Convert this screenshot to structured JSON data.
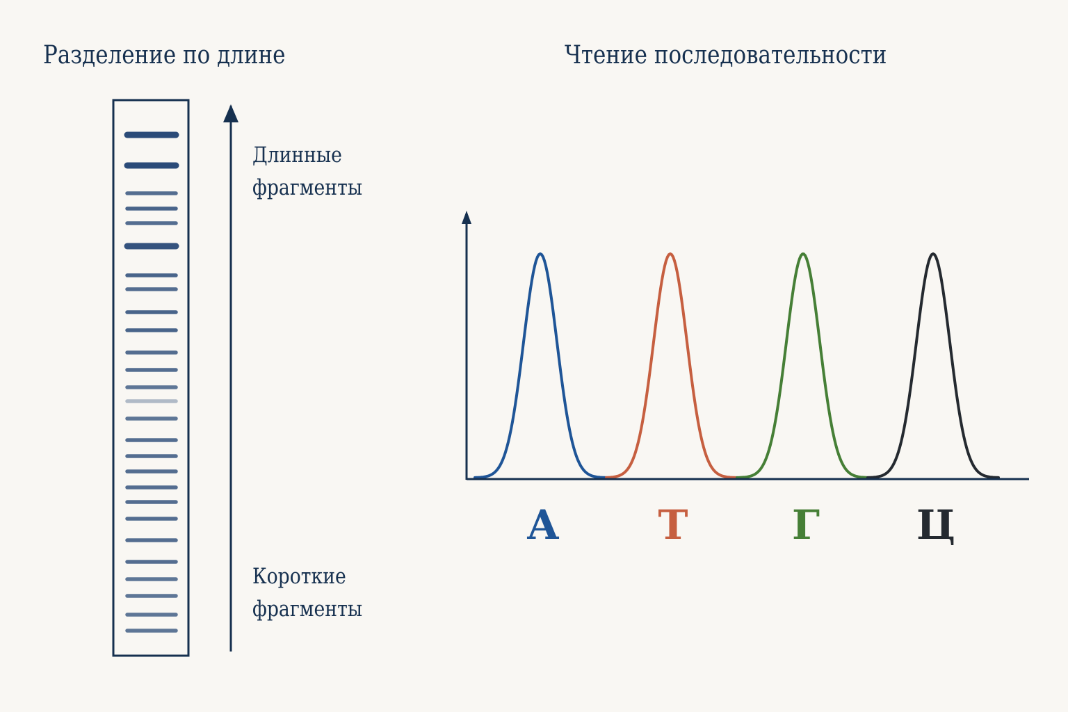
{
  "gel": {
    "title": "Разделение по длине",
    "long_label_line1": "Длинные",
    "long_label_line2": "фрагменты",
    "short_label_line1": "Короткие",
    "short_label_line2": "фрагменты",
    "band_color": "#2b4b78",
    "frame_color": "#16304f",
    "bands": [
      {
        "strength": 1.0
      },
      {
        "strength": 1.0
      },
      {
        "strength": 0.8
      },
      {
        "strength": 0.85
      },
      {
        "strength": 0.8
      },
      {
        "strength": 0.95
      },
      {
        "strength": 0.85
      },
      {
        "strength": 0.8
      },
      {
        "strength": 0.85
      },
      {
        "strength": 0.85
      },
      {
        "strength": 0.8
      },
      {
        "strength": 0.8
      },
      {
        "strength": 0.75
      },
      {
        "strength": 0.35
      },
      {
        "strength": 0.75
      },
      {
        "strength": 0.8
      },
      {
        "strength": 0.8
      },
      {
        "strength": 0.8
      },
      {
        "strength": 0.8
      },
      {
        "strength": 0.8
      },
      {
        "strength": 0.8
      },
      {
        "strength": 0.8
      },
      {
        "strength": 0.8
      },
      {
        "strength": 0.75
      },
      {
        "strength": 0.75
      },
      {
        "strength": 0.75
      },
      {
        "strength": 0.75
      }
    ]
  },
  "sequence": {
    "title": "Чтение последовательности",
    "axis_color": "#16304f",
    "peaks": [
      {
        "base": "А",
        "color": "#1f5597",
        "height": 1.0
      },
      {
        "base": "Т",
        "color": "#c65f40",
        "height": 1.0
      },
      {
        "base": "Г",
        "color": "#467f36",
        "height": 1.0
      },
      {
        "base": "Ц",
        "color": "#252a30",
        "height": 1.0
      }
    ]
  }
}
